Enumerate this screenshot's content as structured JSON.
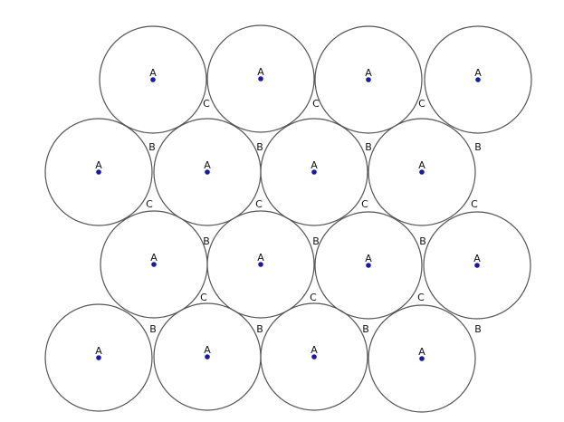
{
  "diagram": {
    "circle_label": "A",
    "labels": {
      "b": "B",
      "c": "C"
    },
    "colors": {
      "circle_stroke": "#555555",
      "center_dot": "#1a1aa0",
      "background": "#ffffff"
    }
  }
}
